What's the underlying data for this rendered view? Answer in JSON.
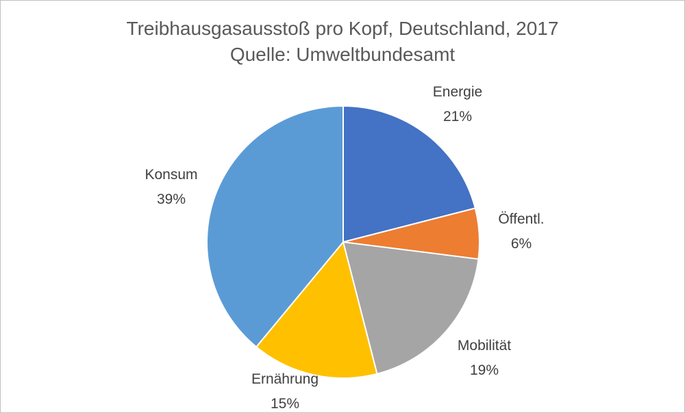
{
  "chart_data": {
    "type": "pie",
    "title": "Treibhausgasausstoß pro Kopf, Deutschland, 2017",
    "subtitle": "Quelle: Umweltbundesamt",
    "slices": [
      {
        "label": "Energie",
        "percent_label": "21%",
        "value": 21,
        "color": "#4472C4"
      },
      {
        "label": "Öffentl.",
        "percent_label": "6%",
        "value": 6,
        "color": "#ED7D31"
      },
      {
        "label": "Mobilität",
        "percent_label": "19%",
        "value": 19,
        "color": "#A5A5A5"
      },
      {
        "label": "Ernährung",
        "percent_label": "15%",
        "value": 15,
        "color": "#FFC000"
      },
      {
        "label": "Konsum",
        "percent_label": "39%",
        "value": 39,
        "color": "#5B9BD5"
      }
    ]
  }
}
